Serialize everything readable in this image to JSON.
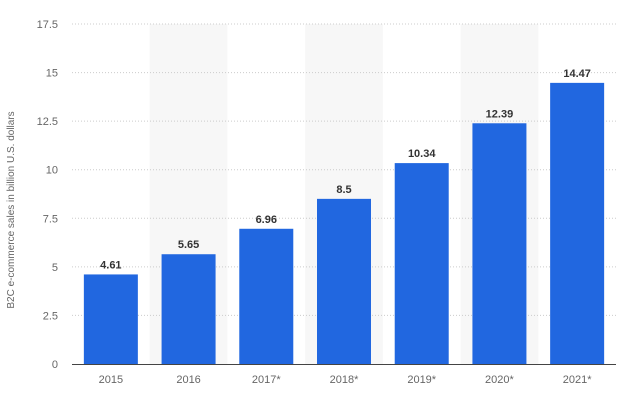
{
  "chart_data": {
    "type": "bar",
    "categories": [
      "2015",
      "2016",
      "2017*",
      "2018*",
      "2019*",
      "2020*",
      "2021*"
    ],
    "values": [
      4.61,
      5.65,
      6.96,
      8.5,
      10.34,
      12.39,
      14.47
    ],
    "data_labels": [
      "4.61",
      "5.65",
      "6.96",
      "8.5",
      "10.34",
      "12.39",
      "14.47"
    ],
    "title": "",
    "xlabel": "",
    "ylabel": "B2C e-commerce sales in billion U.S. dollars",
    "ylim": [
      0,
      17.5
    ],
    "yticks": [
      0,
      2.5,
      5,
      7.5,
      10,
      12.5,
      15,
      17.5
    ],
    "ytick_labels": [
      "0",
      "2.5",
      "5",
      "7.5",
      "10",
      "12.5",
      "15",
      "17.5"
    ],
    "grid": "horizontal dotted",
    "alternating_column_shading": true,
    "legend": "none",
    "colors": {
      "bar": "#2167e0",
      "band": "#f7f7f7",
      "grid": "#cccccc",
      "axis": "#444444"
    }
  }
}
